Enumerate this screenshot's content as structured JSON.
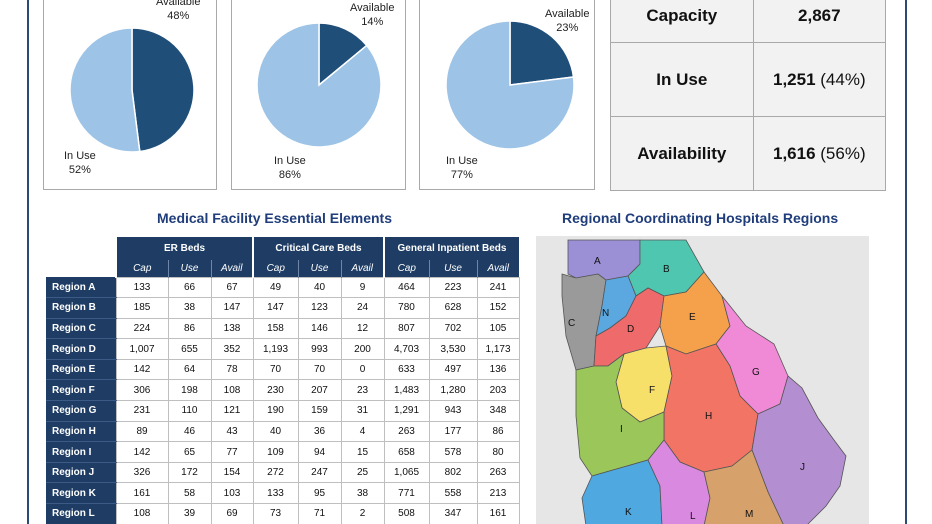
{
  "pies": [
    {
      "available_label": "Available",
      "available_pct": "48%",
      "inuse_label": "In Use",
      "inuse_pct": "52%",
      "available_value": 48,
      "inuse_value": 52
    },
    {
      "available_label": "Available",
      "available_pct": "14%",
      "inuse_label": "In Use",
      "inuse_pct": "86%",
      "available_value": 14,
      "inuse_value": 86
    },
    {
      "available_label": "Available",
      "available_pct": "23%",
      "inuse_label": "In Use",
      "inuse_pct": "77%",
      "available_value": 23,
      "inuse_value": 77
    }
  ],
  "capacity_table": {
    "rows": [
      {
        "label": "Capacity",
        "value": "2,867",
        "pct": ""
      },
      {
        "label": "In Use",
        "value": "1,251",
        "pct": " (44%)"
      },
      {
        "label": "Availability",
        "value": "1,616",
        "pct": " (56%)"
      }
    ]
  },
  "facility_table": {
    "title": "Medical Facility Essential Elements",
    "groups": [
      "ER Beds",
      "Critical Care Beds",
      "General Inpatient Beds"
    ],
    "subheaders": [
      "Cap",
      "Use",
      "Avail",
      "Cap",
      "Use",
      "Avail",
      "Cap",
      "Use",
      "Avail"
    ],
    "rows": [
      {
        "region": "Region A",
        "vals": [
          "133",
          "66",
          "67",
          "49",
          "40",
          "9",
          "464",
          "223",
          "241"
        ]
      },
      {
        "region": "Region B",
        "vals": [
          "185",
          "38",
          "147",
          "147",
          "123",
          "24",
          "780",
          "628",
          "152"
        ]
      },
      {
        "region": "Region C",
        "vals": [
          "224",
          "86",
          "138",
          "158",
          "146",
          "12",
          "807",
          "702",
          "105"
        ]
      },
      {
        "region": "Region D",
        "vals": [
          "1,007",
          "655",
          "352",
          "1,193",
          "993",
          "200",
          "4,703",
          "3,530",
          "1,173"
        ]
      },
      {
        "region": "Region E",
        "vals": [
          "142",
          "64",
          "78",
          "70",
          "70",
          "0",
          "633",
          "497",
          "136"
        ]
      },
      {
        "region": "Region F",
        "vals": [
          "306",
          "198",
          "108",
          "230",
          "207",
          "23",
          "1,483",
          "1,280",
          "203"
        ]
      },
      {
        "region": "Region G",
        "vals": [
          "231",
          "110",
          "121",
          "190",
          "159",
          "31",
          "1,291",
          "943",
          "348"
        ]
      },
      {
        "region": "Region H",
        "vals": [
          "89",
          "46",
          "43",
          "40",
          "36",
          "4",
          "263",
          "177",
          "86"
        ]
      },
      {
        "region": "Region I",
        "vals": [
          "142",
          "65",
          "77",
          "109",
          "94",
          "15",
          "658",
          "578",
          "80"
        ]
      },
      {
        "region": "Region J",
        "vals": [
          "326",
          "172",
          "154",
          "272",
          "247",
          "25",
          "1,065",
          "802",
          "263"
        ]
      },
      {
        "region": "Region K",
        "vals": [
          "161",
          "58",
          "103",
          "133",
          "95",
          "38",
          "771",
          "558",
          "213"
        ]
      },
      {
        "region": "Region L",
        "vals": [
          "108",
          "39",
          "69",
          "73",
          "71",
          "2",
          "508",
          "347",
          "161"
        ]
      }
    ]
  },
  "map": {
    "title": "Regional Coordinating Hospitals Regions",
    "regions": [
      {
        "label": "A",
        "color": "#9b8fd6"
      },
      {
        "label": "B",
        "color": "#4fc7b0"
      },
      {
        "label": "C",
        "color": "#9a9a9a"
      },
      {
        "label": "N",
        "color": "#5ba7e0"
      },
      {
        "label": "D",
        "color": "#ef6b6b"
      },
      {
        "label": "E",
        "color": "#f5a04a"
      },
      {
        "label": "G",
        "color": "#f08ad7"
      },
      {
        "label": "F",
        "color": "#f7e06a"
      },
      {
        "label": "H",
        "color": "#f27464"
      },
      {
        "label": "I",
        "color": "#9bc75a"
      },
      {
        "label": "J",
        "color": "#b38ed0"
      },
      {
        "label": "K",
        "color": "#4fa8df"
      },
      {
        "label": "L",
        "color": "#d98ae0"
      },
      {
        "label": "M",
        "color": "#d6a16b"
      }
    ]
  },
  "chart_data": [
    {
      "type": "pie",
      "categories": [
        "Available",
        "In Use"
      ],
      "values": [
        48,
        52
      ]
    },
    {
      "type": "pie",
      "categories": [
        "Available",
        "In Use"
      ],
      "values": [
        14,
        86
      ]
    },
    {
      "type": "pie",
      "categories": [
        "Available",
        "In Use"
      ],
      "values": [
        23,
        77
      ]
    }
  ],
  "colors": {
    "available": "#1f4e79",
    "inuse": "#9dc3e6",
    "header": "#1f3d64",
    "title": "#1f3d7a"
  }
}
